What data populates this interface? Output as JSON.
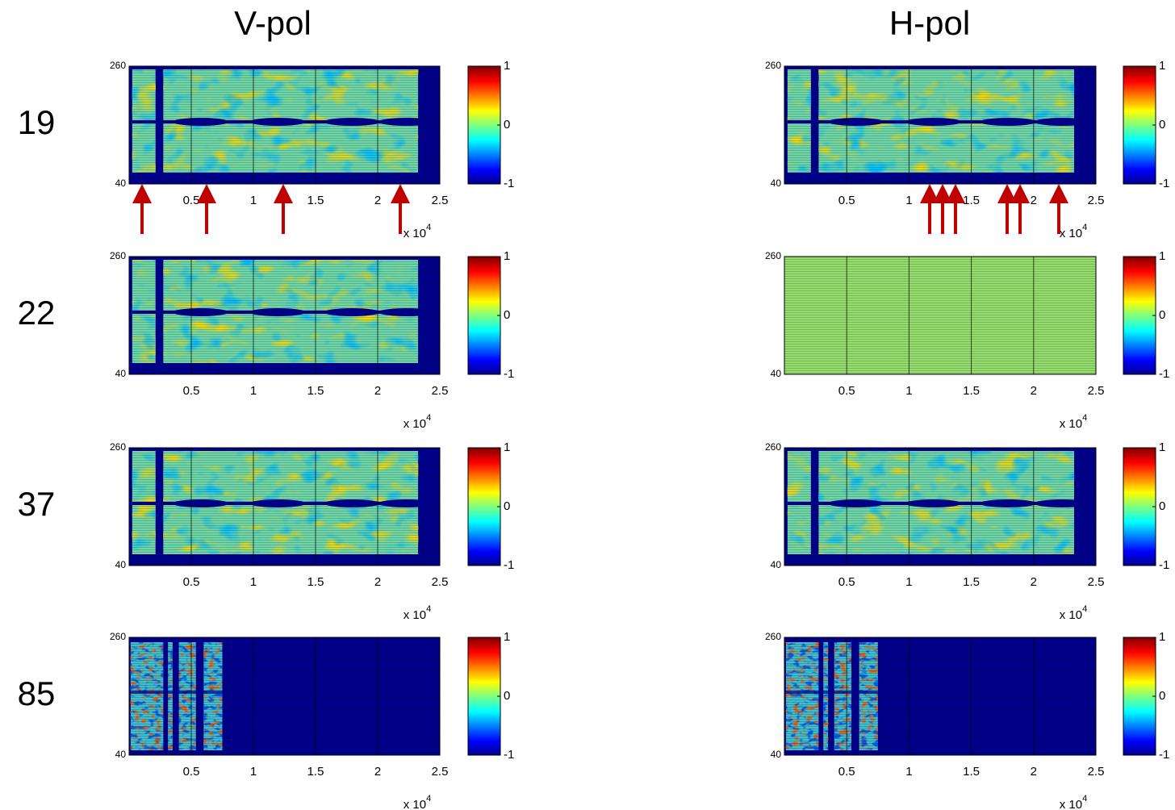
{
  "column_titles": [
    "V-pol",
    "H-pol"
  ],
  "row_labels": [
    "19",
    "22",
    "37",
    "85"
  ],
  "chart_data": [
    {
      "type": "heatmap",
      "xlim": [
        0,
        25000
      ],
      "xticks": [
        {
          "value": 5000,
          "label": "0.5"
        },
        {
          "value": 10000,
          "label": "1"
        },
        {
          "value": 15000,
          "label": "1.5"
        },
        {
          "value": 20000,
          "label": "2"
        },
        {
          "value": 25000,
          "label": "2.5"
        }
      ],
      "x_multiplier": "x 10",
      "x_multiplier_exponent": "4",
      "ylim": [
        40,
        260
      ],
      "yticks": [
        40,
        260
      ],
      "grid": true,
      "colormap": "jet",
      "clim": [
        -1,
        1
      ],
      "cticks": [
        -1,
        0,
        1
      ]
    },
    {
      "type": "heatmap",
      "xlim": [
        0,
        25000
      ],
      "xticks": [
        {
          "value": 5000,
          "label": "0.5"
        },
        {
          "value": 10000,
          "label": "1"
        },
        {
          "value": 15000,
          "label": "1.5"
        },
        {
          "value": 20000,
          "label": "2"
        },
        {
          "value": 25000,
          "label": "2.5"
        }
      ],
      "x_multiplier": "x 10",
      "x_multiplier_exponent": "4",
      "ylim": [
        40,
        260
      ],
      "yticks": [
        40,
        260
      ],
      "grid": true,
      "colormap": "jet",
      "clim": [
        -1,
        1
      ],
      "cticks": [
        -1,
        0,
        1
      ]
    },
    {
      "type": "heatmap",
      "xlim": [
        0,
        25000
      ],
      "xticks": [
        {
          "value": 5000,
          "label": "0.5"
        },
        {
          "value": 10000,
          "label": "1"
        },
        {
          "value": 15000,
          "label": "1.5"
        },
        {
          "value": 20000,
          "label": "2"
        },
        {
          "value": 25000,
          "label": "2.5"
        }
      ],
      "x_multiplier": "x 10",
      "x_multiplier_exponent": "4",
      "ylim": [
        40,
        260
      ],
      "yticks": [
        40,
        260
      ],
      "grid": true,
      "colormap": "jet",
      "clim": [
        -1,
        1
      ],
      "cticks": [
        -1,
        0,
        1
      ]
    },
    {
      "type": "heatmap",
      "xlim": [
        0,
        25000
      ],
      "xticks": [
        {
          "value": 5000,
          "label": "0.5"
        },
        {
          "value": 10000,
          "label": "1"
        },
        {
          "value": 15000,
          "label": "1.5"
        },
        {
          "value": 20000,
          "label": "2"
        },
        {
          "value": 25000,
          "label": "2.5"
        }
      ],
      "x_multiplier": "x 10",
      "x_multiplier_exponent": "4",
      "ylim": [
        40,
        260
      ],
      "yticks": [
        40,
        260
      ],
      "grid": true,
      "colormap": "jet",
      "clim": [
        -1,
        1
      ],
      "cticks": [
        -1,
        0,
        1
      ]
    },
    {
      "type": "heatmap",
      "xlim": [
        0,
        25000
      ],
      "xticks": [
        {
          "value": 5000,
          "label": "0.5"
        },
        {
          "value": 10000,
          "label": "1"
        },
        {
          "value": 15000,
          "label": "1.5"
        },
        {
          "value": 20000,
          "label": "2"
        },
        {
          "value": 25000,
          "label": "2.5"
        }
      ],
      "x_multiplier": "x 10",
      "x_multiplier_exponent": "4",
      "ylim": [
        40,
        260
      ],
      "yticks": [
        40,
        260
      ],
      "grid": true,
      "colormap": "jet",
      "clim": [
        -1,
        1
      ],
      "cticks": [
        -1,
        0,
        1
      ]
    },
    {
      "type": "heatmap",
      "xlim": [
        0,
        25000
      ],
      "xticks": [
        {
          "value": 5000,
          "label": "0.5"
        },
        {
          "value": 10000,
          "label": "1"
        },
        {
          "value": 15000,
          "label": "1.5"
        },
        {
          "value": 20000,
          "label": "2"
        },
        {
          "value": 25000,
          "label": "2.5"
        }
      ],
      "x_multiplier": "x 10",
      "x_multiplier_exponent": "4",
      "ylim": [
        40,
        260
      ],
      "yticks": [
        40,
        260
      ],
      "grid": true,
      "colormap": "jet",
      "clim": [
        -1,
        1
      ],
      "cticks": [
        -1,
        0,
        1
      ]
    },
    {
      "type": "heatmap",
      "xlim": [
        0,
        25000
      ],
      "xticks": [
        {
          "value": 5000,
          "label": "0.5"
        },
        {
          "value": 10000,
          "label": "1"
        },
        {
          "value": 15000,
          "label": "1.5"
        },
        {
          "value": 20000,
          "label": "2"
        },
        {
          "value": 25000,
          "label": "2.5"
        }
      ],
      "x_multiplier": "x 10",
      "x_multiplier_exponent": "4",
      "ylim": [
        40,
        260
      ],
      "yticks": [
        40,
        260
      ],
      "grid": true,
      "colormap": "jet",
      "clim": [
        -1,
        1
      ],
      "cticks": [
        -1,
        0,
        1
      ]
    },
    {
      "type": "heatmap",
      "xlim": [
        0,
        25000
      ],
      "xticks": [
        {
          "value": 5000,
          "label": "0.5"
        },
        {
          "value": 10000,
          "label": "1"
        },
        {
          "value": 15000,
          "label": "1.5"
        },
        {
          "value": 20000,
          "label": "2"
        },
        {
          "value": 25000,
          "label": "2.5"
        }
      ],
      "x_multiplier": "x 10",
      "x_multiplier_exponent": "4",
      "ylim": [
        40,
        260
      ],
      "yticks": [
        40,
        260
      ],
      "grid": true,
      "colormap": "jet",
      "clim": [
        -1,
        1
      ],
      "cticks": [
        -1,
        0,
        1
      ]
    }
  ]
}
